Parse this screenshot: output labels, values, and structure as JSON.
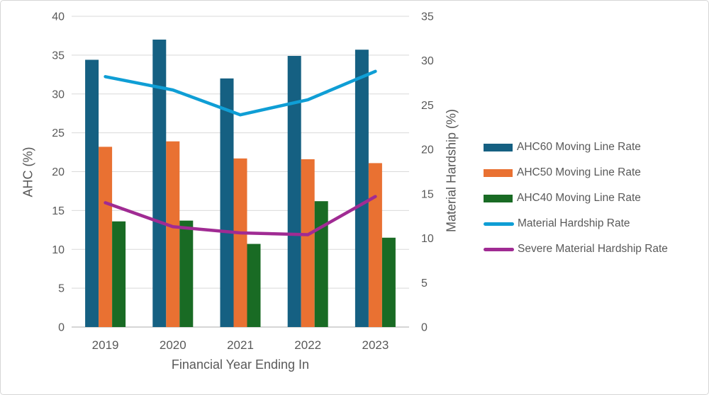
{
  "chart_data": {
    "type": "combo-bar-line",
    "x_title": "Financial Year Ending In",
    "y_left_title": "AHC (%)",
    "y_right_title": "Material Hardship (%)",
    "categories": [
      "2019",
      "2020",
      "2021",
      "2022",
      "2023"
    ],
    "bar_series": [
      {
        "name": "AHC60 Moving Line Rate",
        "color": "#156082",
        "axis": "left",
        "values": [
          34.4,
          37.0,
          32.0,
          34.9,
          35.7
        ]
      },
      {
        "name": "AHC50 Moving Line Rate",
        "color": "#E97132",
        "axis": "left",
        "values": [
          23.2,
          23.9,
          21.7,
          21.6,
          21.1
        ]
      },
      {
        "name": "AHC40 Moving Line Rate",
        "color": "#196B24",
        "axis": "left",
        "values": [
          13.6,
          13.7,
          10.7,
          16.2,
          11.5
        ]
      }
    ],
    "line_series": [
      {
        "name": "Material Hardship Rate",
        "color": "#0F9ED5",
        "axis": "right",
        "values": [
          28.2,
          26.7,
          23.9,
          25.6,
          28.8
        ]
      },
      {
        "name": "Severe Material Hardship Rate",
        "color": "#A02B93",
        "axis": "right",
        "values": [
          14.0,
          11.3,
          10.6,
          10.4,
          14.7
        ]
      }
    ],
    "left_axis": {
      "min": 0,
      "max": 40,
      "step": 5,
      "tick_labels": [
        "0",
        "5",
        "10",
        "15",
        "20",
        "25",
        "30",
        "35",
        "40"
      ]
    },
    "right_axis": {
      "min": 0,
      "max": 35,
      "step": 5,
      "tick_labels": [
        "0",
        "5",
        "10",
        "15",
        "20",
        "25",
        "30",
        "35"
      ]
    },
    "legend_position": "right",
    "grid": true,
    "colors": {
      "text": "#595959",
      "gridline": "#D9D9D9",
      "axis_line": "#C9C9C9",
      "background": "#FFFFFF"
    }
  }
}
